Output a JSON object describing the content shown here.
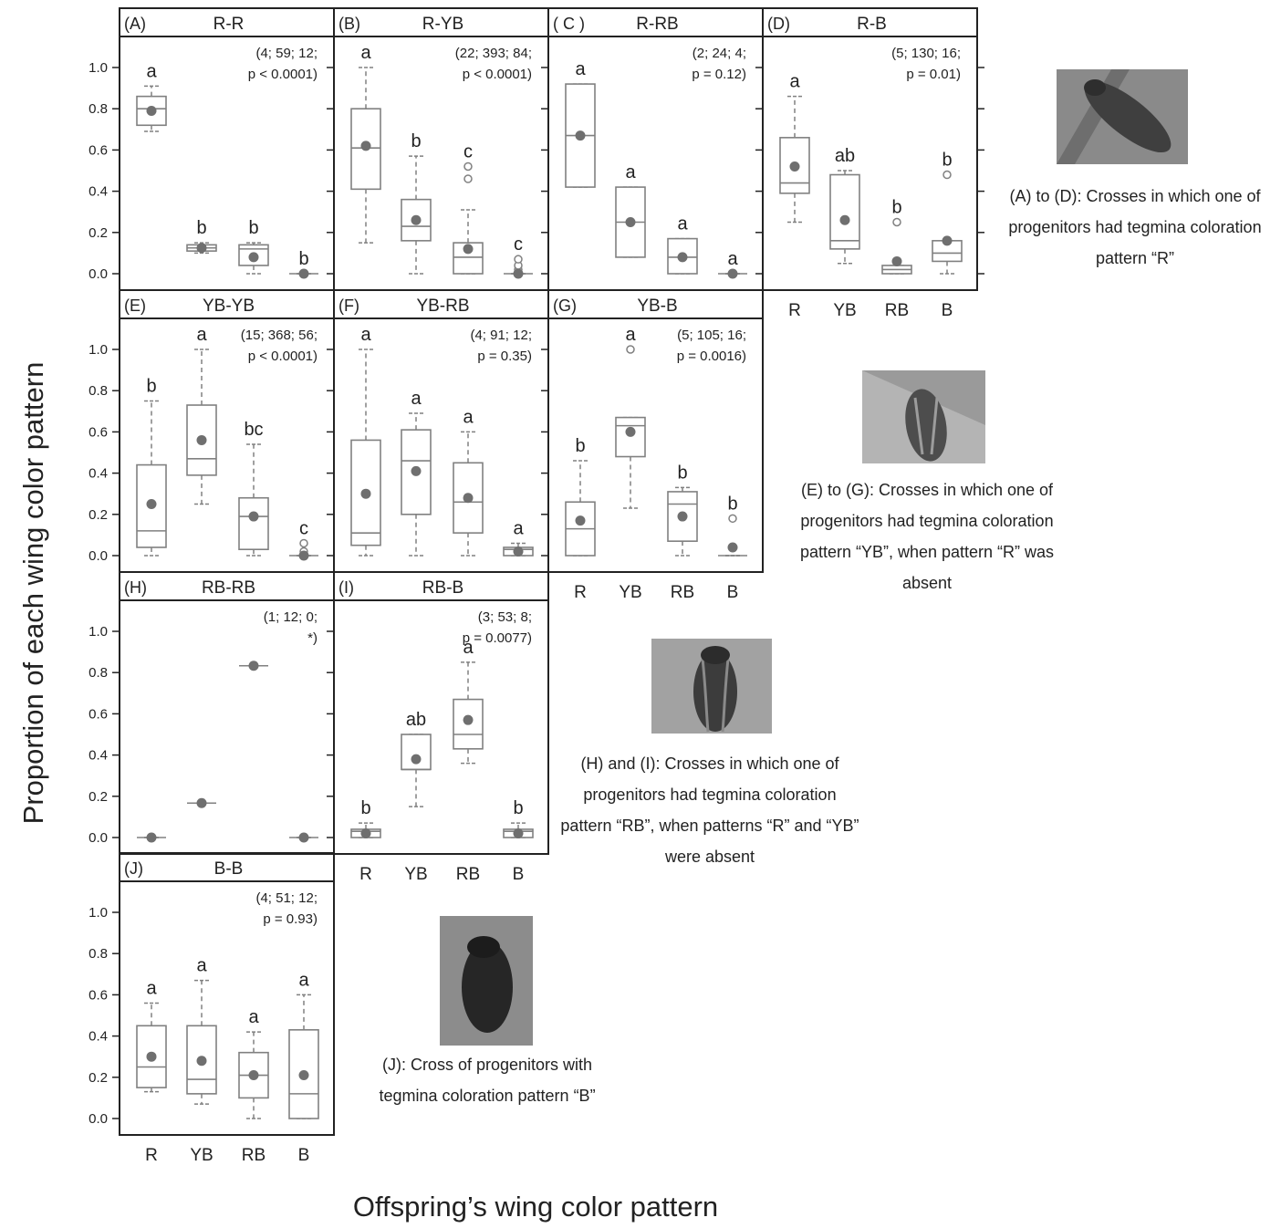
{
  "figure": {
    "ylabel": "Proportion of each wing color pattern",
    "xlabel": "Offspring’s wing color pattern"
  },
  "captions": [
    {
      "id": "cap-ad",
      "text": "(A) to (D): Crosses in which one of progenitors had tegmina coloration pattern “R”"
    },
    {
      "id": "cap-eg",
      "text": "(E) to (G): Crosses in which one of progenitors had tegmina coloration pattern “YB”, when pattern “R” was absent"
    },
    {
      "id": "cap-hi",
      "text": "(H) and (I): Crosses in which one of progenitors had tegmina coloration pattern “RB”, when patterns “R” and “YB” were absent"
    },
    {
      "id": "cap-j",
      "text": "(J): Cross of progenitors with tegmina coloration pattern “B”"
    }
  ],
  "chart_data": [
    {
      "id": "A",
      "type": "box",
      "panel": "(A)",
      "title": "R-R",
      "stats": "(4; 59; 12; p < 0.0001)",
      "categories": [
        "R",
        "YB",
        "RB",
        "B"
      ],
      "ylim": [
        0,
        1.0
      ],
      "yticks": [
        "0.0",
        "0.2",
        "0.4",
        "0.6",
        "0.8",
        "1.0"
      ],
      "boxes": [
        {
          "min": 0.69,
          "q1": 0.72,
          "median": 0.8,
          "q3": 0.86,
          "max": 0.91,
          "mean": 0.79,
          "outliers": [],
          "letter": "a"
        },
        {
          "min": 0.1,
          "q1": 0.11,
          "median": 0.125,
          "q3": 0.14,
          "max": 0.15,
          "mean": 0.125,
          "outliers": [],
          "letter": "b"
        },
        {
          "min": 0.0,
          "q1": 0.04,
          "median": 0.12,
          "q3": 0.14,
          "max": 0.15,
          "mean": 0.08,
          "outliers": [],
          "letter": "b"
        },
        {
          "min": 0,
          "q1": 0,
          "median": 0,
          "q3": 0,
          "max": 0,
          "mean": 0,
          "outliers": [],
          "letter": "b"
        }
      ]
    },
    {
      "id": "B",
      "type": "box",
      "panel": "(B)",
      "title": "R-YB",
      "stats": "(22; 393; 84; p < 0.0001)",
      "categories": [
        "R",
        "YB",
        "RB",
        "B"
      ],
      "ylim": [
        0,
        1.0
      ],
      "yticks": [
        "0.0",
        "0.2",
        "0.4",
        "0.6",
        "0.8",
        "1.0"
      ],
      "boxes": [
        {
          "min": 0.15,
          "q1": 0.41,
          "median": 0.61,
          "q3": 0.8,
          "max": 1.0,
          "mean": 0.62,
          "outliers": [],
          "letter": "a"
        },
        {
          "min": 0.0,
          "q1": 0.16,
          "median": 0.23,
          "q3": 0.36,
          "max": 0.57,
          "mean": 0.26,
          "outliers": [],
          "letter": "b"
        },
        {
          "min": 0.0,
          "q1": 0.0,
          "median": 0.08,
          "q3": 0.15,
          "max": 0.31,
          "mean": 0.12,
          "outliers": [
            0.46,
            0.52
          ],
          "letter": "c"
        },
        {
          "min": 0,
          "q1": 0,
          "median": 0,
          "q3": 0,
          "max": 0,
          "mean": 0.0,
          "outliers": [
            0.02,
            0.04,
            0.07
          ],
          "letter": "c"
        }
      ]
    },
    {
      "id": "C",
      "type": "box",
      "panel": "( C )",
      "title": "R-RB",
      "stats": "(2; 24; 4; p = 0.12)",
      "categories": [
        "R",
        "YB",
        "RB",
        "B"
      ],
      "ylim": [
        0,
        1.0
      ],
      "yticks": [
        "0.0",
        "0.2",
        "0.4",
        "0.6",
        "0.8",
        "1.0"
      ],
      "boxes": [
        {
          "min": 0.42,
          "q1": 0.42,
          "median": 0.67,
          "q3": 0.92,
          "max": 0.92,
          "mean": 0.67,
          "outliers": [],
          "letter": "a"
        },
        {
          "min": 0.08,
          "q1": 0.08,
          "median": 0.25,
          "q3": 0.42,
          "max": 0.42,
          "mean": 0.25,
          "outliers": [],
          "letter": "a"
        },
        {
          "min": 0.0,
          "q1": 0.0,
          "median": 0.08,
          "q3": 0.17,
          "max": 0.17,
          "mean": 0.08,
          "outliers": [],
          "letter": "a"
        },
        {
          "min": 0,
          "q1": 0,
          "median": 0,
          "q3": 0,
          "max": 0,
          "mean": 0,
          "outliers": [],
          "letter": "a"
        }
      ]
    },
    {
      "id": "D",
      "type": "box",
      "panel": "(D)",
      "title": "R-B",
      "stats": "(5; 130; 16; p = 0.01)",
      "categories": [
        "R",
        "YB",
        "RB",
        "B"
      ],
      "ylim": [
        0,
        1.0
      ],
      "yticks": [
        "0.0",
        "0.2",
        "0.4",
        "0.6",
        "0.8",
        "1.0"
      ],
      "boxes": [
        {
          "min": 0.25,
          "q1": 0.39,
          "median": 0.44,
          "q3": 0.66,
          "max": 0.86,
          "mean": 0.52,
          "outliers": [],
          "letter": "a"
        },
        {
          "min": 0.05,
          "q1": 0.12,
          "median": 0.16,
          "q3": 0.48,
          "max": 0.5,
          "mean": 0.26,
          "outliers": [],
          "letter": "ab"
        },
        {
          "min": 0.0,
          "q1": 0.0,
          "median": 0.02,
          "q3": 0.04,
          "max": 0.04,
          "mean": 0.06,
          "outliers": [
            0.25
          ],
          "letter": "b"
        },
        {
          "min": 0.0,
          "q1": 0.06,
          "median": 0.1,
          "q3": 0.16,
          "max": 0.16,
          "mean": 0.16,
          "outliers": [
            0.48
          ],
          "letter": "b"
        }
      ]
    },
    {
      "id": "E",
      "type": "box",
      "panel": "(E)",
      "title": "YB-YB",
      "stats": "(15; 368; 56; p < 0.0001)",
      "categories": [
        "R",
        "YB",
        "RB",
        "B"
      ],
      "ylim": [
        0,
        1.0
      ],
      "yticks": [
        "0.0",
        "0.2",
        "0.4",
        "0.6",
        "0.8",
        "1.0"
      ],
      "boxes": [
        {
          "min": 0.0,
          "q1": 0.04,
          "median": 0.12,
          "q3": 0.44,
          "max": 0.75,
          "mean": 0.25,
          "outliers": [],
          "letter": "b"
        },
        {
          "min": 0.25,
          "q1": 0.39,
          "median": 0.47,
          "q3": 0.73,
          "max": 1.0,
          "mean": 0.56,
          "outliers": [],
          "letter": "a"
        },
        {
          "min": 0.0,
          "q1": 0.03,
          "median": 0.19,
          "q3": 0.28,
          "max": 0.54,
          "mean": 0.19,
          "outliers": [],
          "letter": "bc"
        },
        {
          "min": 0,
          "q1": 0,
          "median": 0,
          "q3": 0,
          "max": 0,
          "mean": 0.0,
          "outliers": [
            0.02,
            0.06
          ],
          "letter": "c"
        }
      ]
    },
    {
      "id": "F",
      "type": "box",
      "panel": "(F)",
      "title": "YB-RB",
      "stats": "(4; 91; 12; p = 0.35)",
      "categories": [
        "R",
        "YB",
        "RB",
        "B"
      ],
      "ylim": [
        0,
        1.0
      ],
      "yticks": [
        "0.0",
        "0.2",
        "0.4",
        "0.6",
        "0.8",
        "1.0"
      ],
      "boxes": [
        {
          "min": 0.0,
          "q1": 0.05,
          "median": 0.11,
          "q3": 0.56,
          "max": 1.0,
          "mean": 0.3,
          "outliers": [],
          "letter": "a"
        },
        {
          "min": 0.0,
          "q1": 0.2,
          "median": 0.46,
          "q3": 0.61,
          "max": 0.69,
          "mean": 0.41,
          "outliers": [],
          "letter": "a"
        },
        {
          "min": 0.0,
          "q1": 0.11,
          "median": 0.26,
          "q3": 0.45,
          "max": 0.6,
          "mean": 0.28,
          "outliers": [],
          "letter": "a"
        },
        {
          "min": 0.0,
          "q1": 0.0,
          "median": 0.03,
          "q3": 0.04,
          "max": 0.06,
          "mean": 0.02,
          "outliers": [],
          "letter": "a"
        }
      ]
    },
    {
      "id": "G",
      "type": "box",
      "panel": "(G)",
      "title": "YB-B",
      "stats": "(5; 105; 16; p = 0.0016)",
      "categories": [
        "R",
        "YB",
        "RB",
        "B"
      ],
      "ylim": [
        0,
        1.0
      ],
      "yticks": [
        "0.0",
        "0.2",
        "0.4",
        "0.6",
        "0.8",
        "1.0"
      ],
      "boxes": [
        {
          "min": 0.0,
          "q1": 0.0,
          "median": 0.13,
          "q3": 0.26,
          "max": 0.46,
          "mean": 0.17,
          "outliers": [],
          "letter": "b"
        },
        {
          "min": 0.23,
          "q1": 0.48,
          "median": 0.63,
          "q3": 0.67,
          "max": 0.67,
          "mean": 0.6,
          "outliers": [
            1.0
          ],
          "letter": "a"
        },
        {
          "min": 0.0,
          "q1": 0.07,
          "median": 0.25,
          "q3": 0.31,
          "max": 0.33,
          "mean": 0.19,
          "outliers": [],
          "letter": "b"
        },
        {
          "min": 0,
          "q1": 0,
          "median": 0,
          "q3": 0,
          "max": 0,
          "mean": 0.04,
          "outliers": [
            0.18
          ],
          "letter": "b"
        }
      ]
    },
    {
      "id": "H",
      "type": "box",
      "panel": "(H)",
      "title": "RB-RB",
      "stats": "(1; 12; 0; *)",
      "categories": [
        "R",
        "YB",
        "RB",
        "B"
      ],
      "ylim": [
        0,
        1.0
      ],
      "yticks": [
        "0.0",
        "0.2",
        "0.4",
        "0.6",
        "0.8",
        "1.0"
      ],
      "boxes": [
        {
          "min": 0,
          "q1": 0,
          "median": 0,
          "q3": 0,
          "max": 0,
          "mean": 0,
          "outliers": [],
          "letter": ""
        },
        {
          "min": 0.167,
          "q1": 0.167,
          "median": 0.167,
          "q3": 0.167,
          "max": 0.167,
          "mean": 0.167,
          "outliers": [],
          "letter": ""
        },
        {
          "min": 0.833,
          "q1": 0.833,
          "median": 0.833,
          "q3": 0.833,
          "max": 0.833,
          "mean": 0.833,
          "outliers": [],
          "letter": ""
        },
        {
          "min": 0,
          "q1": 0,
          "median": 0,
          "q3": 0,
          "max": 0,
          "mean": 0,
          "outliers": [],
          "letter": ""
        }
      ]
    },
    {
      "id": "I",
      "type": "box",
      "panel": "(I)",
      "title": "RB-B",
      "stats": "(3; 53; 8; p = 0.0077)",
      "categories": [
        "R",
        "YB",
        "RB",
        "B"
      ],
      "ylim": [
        0,
        1.0
      ],
      "yticks": [
        "0.0",
        "0.2",
        "0.4",
        "0.6",
        "0.8",
        "1.0"
      ],
      "boxes": [
        {
          "min": 0.0,
          "q1": 0.0,
          "median": 0.03,
          "q3": 0.04,
          "max": 0.07,
          "mean": 0.02,
          "outliers": [],
          "letter": "b"
        },
        {
          "min": 0.15,
          "q1": 0.33,
          "median": 0.33,
          "q3": 0.5,
          "max": 0.5,
          "mean": 0.38,
          "outliers": [],
          "letter": "ab"
        },
        {
          "min": 0.36,
          "q1": 0.43,
          "median": 0.5,
          "q3": 0.67,
          "max": 0.85,
          "mean": 0.57,
          "outliers": [],
          "letter": "a"
        },
        {
          "min": 0.0,
          "q1": 0.0,
          "median": 0.03,
          "q3": 0.04,
          "max": 0.07,
          "mean": 0.02,
          "outliers": [],
          "letter": "b"
        }
      ]
    },
    {
      "id": "J",
      "type": "box",
      "panel": "(J)",
      "title": "B-B",
      "stats": "(4; 51; 12; p = 0.93)",
      "categories": [
        "R",
        "YB",
        "RB",
        "B"
      ],
      "ylim": [
        0,
        1.0
      ],
      "yticks": [
        "0.0",
        "0.2",
        "0.4",
        "0.6",
        "0.8",
        "1.0"
      ],
      "boxes": [
        {
          "min": 0.13,
          "q1": 0.15,
          "median": 0.25,
          "q3": 0.45,
          "max": 0.56,
          "mean": 0.3,
          "outliers": [],
          "letter": "a"
        },
        {
          "min": 0.07,
          "q1": 0.12,
          "median": 0.19,
          "q3": 0.45,
          "max": 0.67,
          "mean": 0.28,
          "outliers": [],
          "letter": "a"
        },
        {
          "min": 0.0,
          "q1": 0.1,
          "median": 0.21,
          "q3": 0.32,
          "max": 0.42,
          "mean": 0.21,
          "outliers": [],
          "letter": "a"
        },
        {
          "min": 0.0,
          "q1": 0.0,
          "median": 0.12,
          "q3": 0.43,
          "max": 0.6,
          "mean": 0.21,
          "outliers": [],
          "letter": "a"
        }
      ]
    }
  ]
}
